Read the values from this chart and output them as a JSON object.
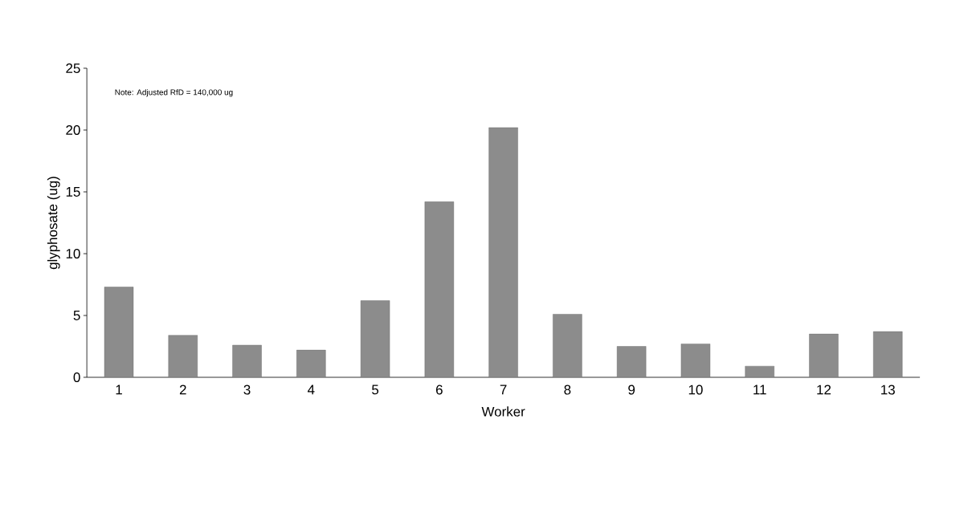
{
  "chart_data": {
    "type": "bar",
    "xlabel": "Worker",
    "ylabel": "glyphosate (ug)",
    "categories": [
      "1",
      "2",
      "3",
      "4",
      "5",
      "6",
      "7",
      "8",
      "9",
      "10",
      "11",
      "12",
      "13"
    ],
    "values": [
      7.3,
      3.4,
      2.6,
      2.2,
      6.2,
      14.2,
      20.2,
      5.1,
      2.5,
      2.7,
      0.9,
      3.5,
      3.7
    ],
    "color": "#8c8c8c",
    "ylim": [
      0,
      25
    ],
    "yticks": [
      0,
      5,
      10,
      15,
      20,
      25
    ],
    "annotations": [
      "Note: Adjusted RfD = 140,000 ug"
    ]
  }
}
